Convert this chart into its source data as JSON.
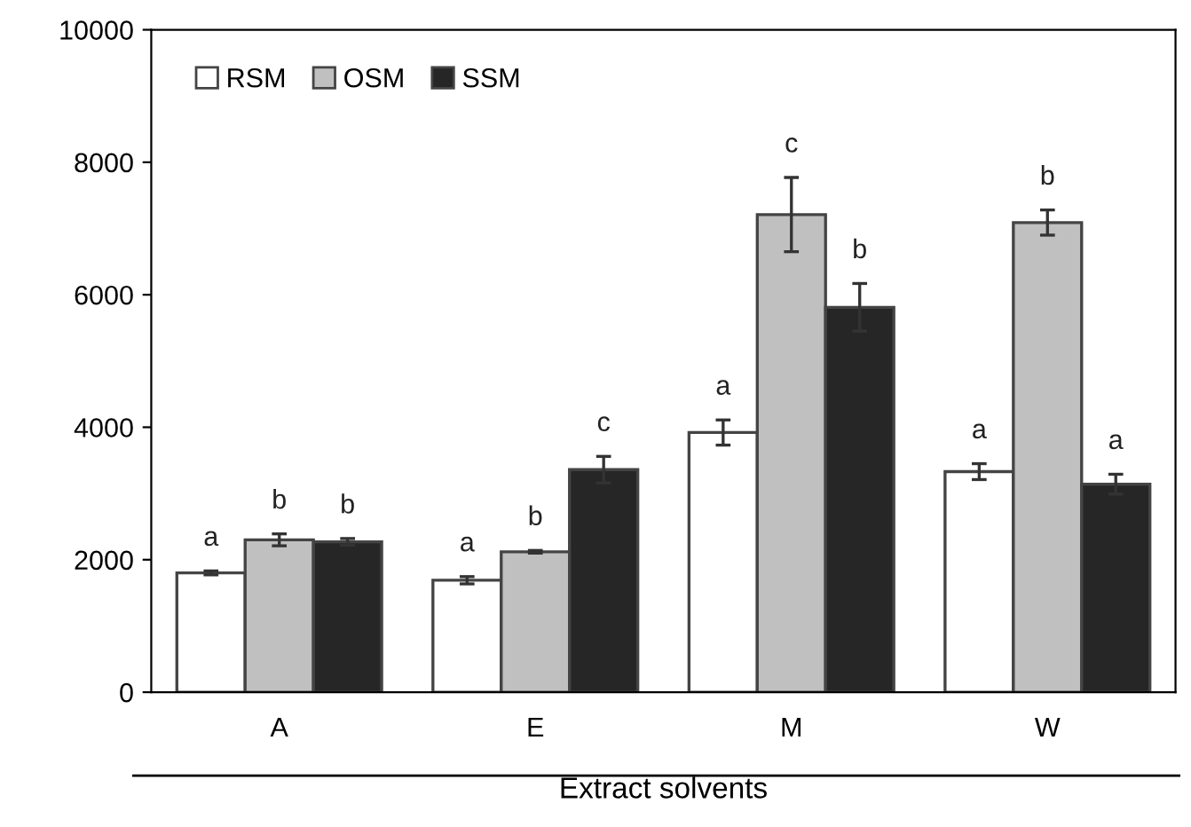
{
  "chart_data": {
    "type": "bar",
    "xlabel": "Extract solvents",
    "categories": [
      "A",
      "E",
      "M",
      "W"
    ],
    "series": [
      {
        "name": "RSM",
        "color": "#ffffff",
        "values": [
          1800,
          1690,
          3920,
          3330
        ],
        "errors": [
          30,
          55,
          190,
          120
        ],
        "value_labels": [
          "a",
          "a",
          "a",
          "a"
        ]
      },
      {
        "name": "OSM",
        "color": "#c0c0c0",
        "values": [
          2300,
          2120,
          7210,
          7090
        ],
        "errors": [
          90,
          20,
          560,
          190
        ],
        "value_labels": [
          "b",
          "b",
          "c",
          "b"
        ]
      },
      {
        "name": "SSM",
        "color": "#262626",
        "values": [
          2270,
          3360,
          5810,
          3140
        ],
        "errors": [
          50,
          200,
          360,
          150
        ],
        "value_labels": [
          "b",
          "c",
          "b",
          "a"
        ]
      }
    ],
    "ylim": [
      0,
      10000
    ],
    "yticks": [
      0,
      2000,
      4000,
      6000,
      8000,
      10000
    ],
    "grid": false,
    "legend": "top left"
  }
}
